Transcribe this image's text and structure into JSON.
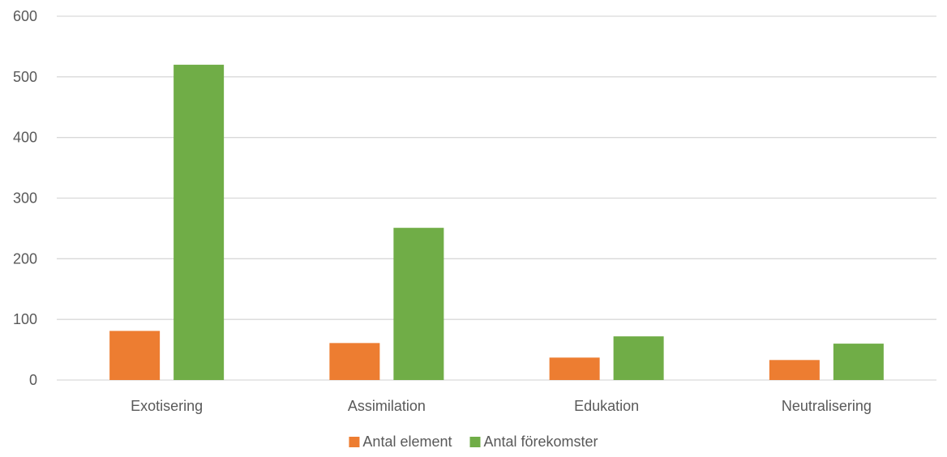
{
  "chart_data": {
    "type": "bar",
    "title": "",
    "xlabel": "",
    "ylabel": "",
    "categories": [
      "Exotisering",
      "Assimilation",
      "Edukation",
      "Neutralisering"
    ],
    "series": [
      {
        "name": "Antal element",
        "color": "#ED7D31",
        "values": [
          81,
          61,
          37,
          33
        ]
      },
      {
        "name": "Antal förekomster",
        "color": "#70AD47",
        "values": [
          520,
          251,
          72,
          60
        ]
      }
    ],
    "ylim": [
      0,
      600
    ],
    "yticks": [
      0,
      100,
      200,
      300,
      400,
      500,
      600
    ],
    "grid": true,
    "legend_position": "bottom"
  }
}
